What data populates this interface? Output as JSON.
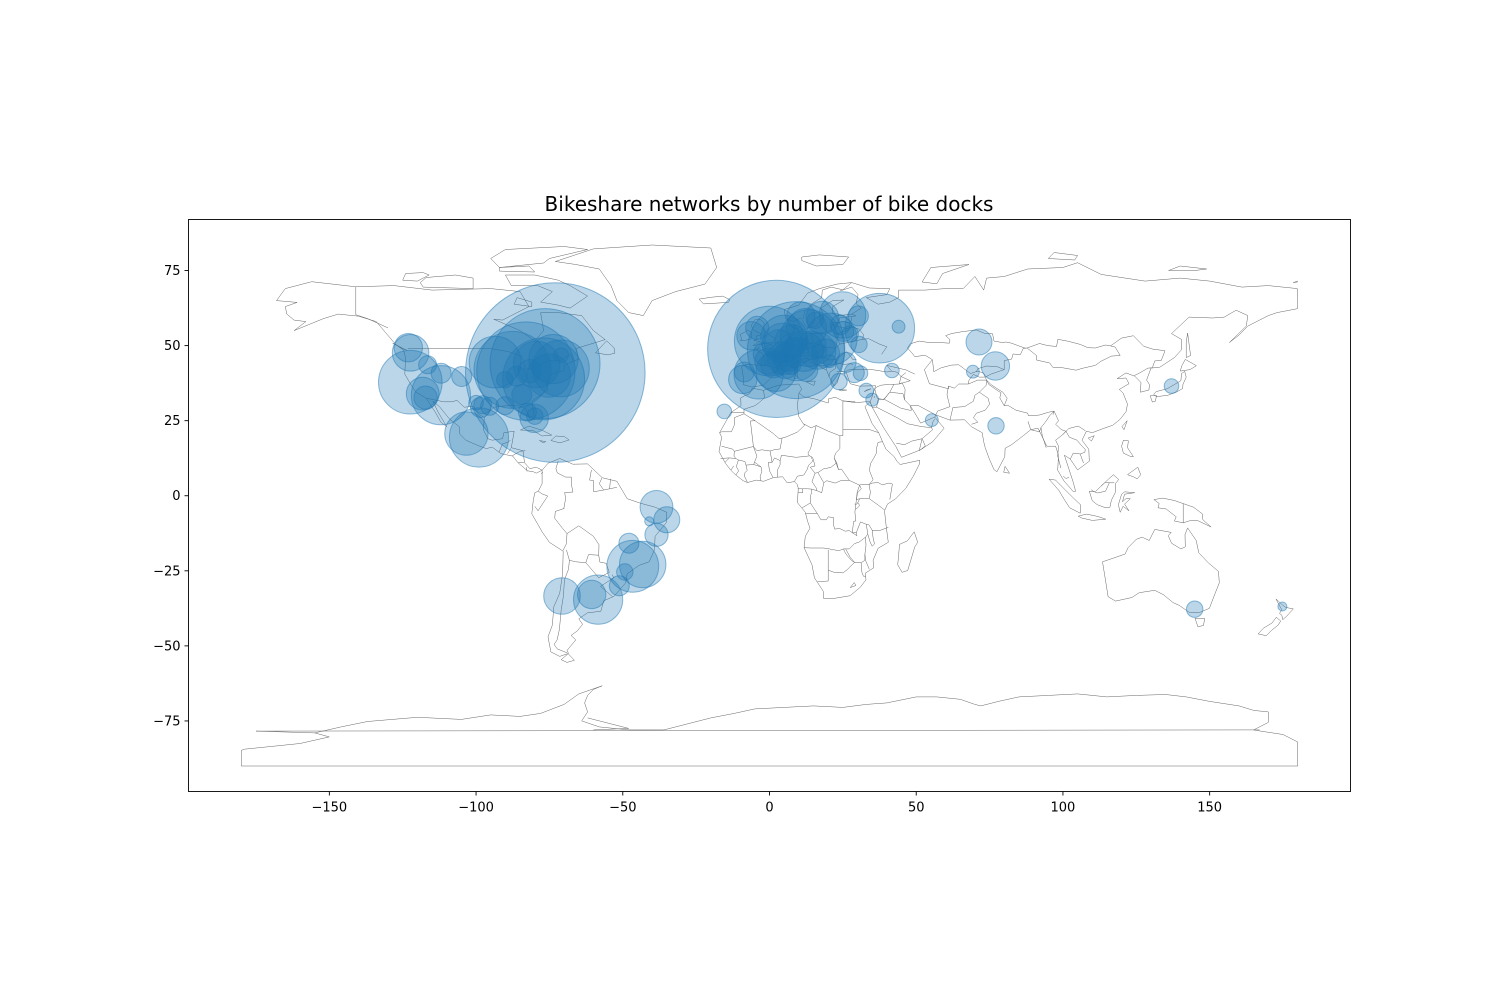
{
  "chart_data": {
    "type": "scatter",
    "title": "Bikeshare networks by number of bike docks",
    "xlabel": "",
    "ylabel": "",
    "xlim": [
      -198,
      198
    ],
    "ylim": [
      -98.5,
      92
    ],
    "x_ticks": [
      -150,
      -100,
      -50,
      0,
      50,
      100,
      150
    ],
    "y_ticks": [
      -75,
      -50,
      -25,
      0,
      25,
      50,
      75
    ],
    "x_tick_labels": [
      "−150",
      "−100",
      "−50",
      "0",
      "50",
      "100",
      "150"
    ],
    "y_tick_labels": [
      "−75",
      "−50",
      "−25",
      "0",
      "25",
      "50",
      "75"
    ],
    "grid": false,
    "legend": "none",
    "basemap": "world country outlines",
    "colors": {
      "points": "#1f77b4",
      "land_outline": "#666666"
    },
    "size_encoding": "number of bike docks",
    "points": [
      {
        "lon": -73.0,
        "lat": 41.0,
        "docks": 12000
      },
      {
        "lon": -76.5,
        "lat": 44.0,
        "docks": 4500
      },
      {
        "lon": -83.0,
        "lat": 41.5,
        "docks": 3600
      },
      {
        "lon": -77.0,
        "lat": 38.9,
        "docks": 2500
      },
      {
        "lon": -87.6,
        "lat": 41.9,
        "docks": 2200
      },
      {
        "lon": -93.5,
        "lat": 44.5,
        "docks": 1000
      },
      {
        "lon": -122.4,
        "lat": 37.8,
        "docks": 1500
      },
      {
        "lon": -112.0,
        "lat": 33.5,
        "docks": 1300
      },
      {
        "lon": -99.0,
        "lat": 19.4,
        "docks": 1300
      },
      {
        "lon": -118.2,
        "lat": 34.0,
        "docks": 400
      },
      {
        "lon": -122.3,
        "lat": 47.6,
        "docks": 500
      },
      {
        "lon": -123.1,
        "lat": 49.3,
        "docks": 300
      },
      {
        "lon": -80.2,
        "lat": 25.8,
        "docks": 300
      },
      {
        "lon": -104.9,
        "lat": 39.7,
        "docks": 150
      },
      {
        "lon": -98.5,
        "lat": 29.4,
        "docks": 150
      },
      {
        "lon": -97.7,
        "lat": 30.3,
        "docks": 120
      },
      {
        "lon": -95.4,
        "lat": 29.8,
        "docks": 120
      },
      {
        "lon": -90.1,
        "lat": 30.0,
        "docks": 120
      },
      {
        "lon": -84.4,
        "lat": 33.7,
        "docks": 150
      },
      {
        "lon": -81.7,
        "lat": 41.5,
        "docks": 200
      },
      {
        "lon": -79.4,
        "lat": 43.7,
        "docks": 800
      },
      {
        "lon": -73.6,
        "lat": 45.5,
        "docks": 900
      },
      {
        "lon": -71.1,
        "lat": 42.4,
        "docks": 1200
      },
      {
        "lon": -75.2,
        "lat": 40.0,
        "docks": 700
      },
      {
        "lon": -86.2,
        "lat": 39.8,
        "docks": 150
      },
      {
        "lon": -90.2,
        "lat": 38.6,
        "docks": 100
      },
      {
        "lon": -111.9,
        "lat": 40.8,
        "docks": 150
      },
      {
        "lon": -117.2,
        "lat": 32.7,
        "docks": 200
      },
      {
        "lon": -116.5,
        "lat": 43.6,
        "docks": 120
      },
      {
        "lon": -100.0,
        "lat": 31.0,
        "docks": 80
      },
      {
        "lon": -103.3,
        "lat": 20.7,
        "docks": 700
      },
      {
        "lon": -80.0,
        "lat": 26.5,
        "docks": 100
      },
      {
        "lon": -82.5,
        "lat": 27.9,
        "docks": 120
      },
      {
        "lon": -71.0,
        "lat": 46.8,
        "docks": 80
      },
      {
        "lon": 2.3,
        "lat": 48.9,
        "docks": 7000
      },
      {
        "lon": 9.0,
        "lat": 48.5,
        "docks": 3500
      },
      {
        "lon": -3.7,
        "lat": 40.4,
        "docks": 900
      },
      {
        "lon": -0.1,
        "lat": 51.5,
        "docks": 1800
      },
      {
        "lon": 37.6,
        "lat": 55.8,
        "docks": 1800
      },
      {
        "lon": 24.9,
        "lat": 60.2,
        "docks": 800
      },
      {
        "lon": 18.0,
        "lat": 59.3,
        "docks": 400
      },
      {
        "lon": 10.7,
        "lat": 59.9,
        "docks": 300
      },
      {
        "lon": 12.6,
        "lat": 55.7,
        "docks": 600
      },
      {
        "lon": 13.4,
        "lat": 52.5,
        "docks": 1200
      },
      {
        "lon": 21.0,
        "lat": 52.2,
        "docks": 1000
      },
      {
        "lon": 16.4,
        "lat": 48.2,
        "docks": 500
      },
      {
        "lon": 11.6,
        "lat": 48.1,
        "docks": 600
      },
      {
        "lon": 9.2,
        "lat": 45.5,
        "docks": 700
      },
      {
        "lon": 12.5,
        "lat": 41.9,
        "docks": 200
      },
      {
        "lon": 4.9,
        "lat": 52.4,
        "docks": 800
      },
      {
        "lon": 4.4,
        "lat": 50.8,
        "docks": 600
      },
      {
        "lon": 6.0,
        "lat": 46.2,
        "docks": 300
      },
      {
        "lon": 2.2,
        "lat": 41.4,
        "docks": 600
      },
      {
        "lon": -9.1,
        "lat": 38.7,
        "docks": 300
      },
      {
        "lon": -6.3,
        "lat": 53.3,
        "docks": 300
      },
      {
        "lon": -4.2,
        "lat": 55.9,
        "docks": 200
      },
      {
        "lon": 14.4,
        "lat": 50.1,
        "docks": 300
      },
      {
        "lon": 19.0,
        "lat": 47.5,
        "docks": 300
      },
      {
        "lon": 26.1,
        "lat": 44.4,
        "docks": 150
      },
      {
        "lon": 23.7,
        "lat": 38.0,
        "docks": 100
      },
      {
        "lon": 28.9,
        "lat": 41.0,
        "docks": 150
      },
      {
        "lon": 31.0,
        "lat": 40.8,
        "docks": 80
      },
      {
        "lon": 24.1,
        "lat": 56.9,
        "docks": 150
      },
      {
        "lon": 25.3,
        "lat": 54.7,
        "docks": 150
      },
      {
        "lon": 30.3,
        "lat": 59.9,
        "docks": 150
      },
      {
        "lon": 44.0,
        "lat": 56.3,
        "docks": 60
      },
      {
        "lon": 27.5,
        "lat": 53.9,
        "docks": 100
      },
      {
        "lon": 30.5,
        "lat": 50.4,
        "docks": 100
      },
      {
        "lon": 33.0,
        "lat": 35.0,
        "docks": 80
      },
      {
        "lon": 35.0,
        "lat": 32.0,
        "docks": 60
      },
      {
        "lon": 41.7,
        "lat": 41.7,
        "docks": 80
      },
      {
        "lon": 8.5,
        "lat": 47.4,
        "docks": 300
      },
      {
        "lon": 7.5,
        "lat": 51.5,
        "docks": 400
      },
      {
        "lon": 3.1,
        "lat": 50.6,
        "docks": 300
      },
      {
        "lon": 5.4,
        "lat": 43.3,
        "docks": 250
      },
      {
        "lon": 1.4,
        "lat": 43.6,
        "docks": 250
      },
      {
        "lon": -0.6,
        "lat": 44.8,
        "docks": 250
      },
      {
        "lon": -1.6,
        "lat": 47.2,
        "docks": 200
      },
      {
        "lon": 4.8,
        "lat": 45.8,
        "docks": 400
      },
      {
        "lon": 7.3,
        "lat": 43.7,
        "docks": 150
      },
      {
        "lon": -8.6,
        "lat": 41.2,
        "docks": 150
      },
      {
        "lon": 15.6,
        "lat": 58.4,
        "docks": 100
      },
      {
        "lon": 17.1,
        "lat": 48.1,
        "docks": 80
      },
      {
        "lon": 20.5,
        "lat": 44.8,
        "docks": 60
      },
      {
        "lon": -15.4,
        "lat": 28.1,
        "docks": 80
      },
      {
        "lon": 55.3,
        "lat": 25.2,
        "docks": 60
      },
      {
        "lon": 71.4,
        "lat": 51.2,
        "docks": 250
      },
      {
        "lon": 77.0,
        "lat": 43.2,
        "docks": 300
      },
      {
        "lon": 69.3,
        "lat": 41.3,
        "docks": 60
      },
      {
        "lon": 77.2,
        "lat": 23.3,
        "docks": 100
      },
      {
        "lon": 137.0,
        "lat": 36.5,
        "docks": 80
      },
      {
        "lon": 144.9,
        "lat": -37.8,
        "docks": 100
      },
      {
        "lon": 174.8,
        "lat": -36.9,
        "docks": 30
      },
      {
        "lon": -38.5,
        "lat": -3.7,
        "docks": 400
      },
      {
        "lon": -35.0,
        "lat": -8.0,
        "docks": 250
      },
      {
        "lon": -38.5,
        "lat": -13.0,
        "docks": 200
      },
      {
        "lon": -43.2,
        "lat": -22.9,
        "docks": 800
      },
      {
        "lon": -46.6,
        "lat": -23.5,
        "docks": 1000
      },
      {
        "lon": -47.9,
        "lat": -15.8,
        "docks": 150
      },
      {
        "lon": -49.3,
        "lat": -25.4,
        "docks": 100
      },
      {
        "lon": -51.2,
        "lat": -30.0,
        "docks": 150
      },
      {
        "lon": -58.4,
        "lat": -34.6,
        "docks": 900
      },
      {
        "lon": -60.6,
        "lat": -32.9,
        "docks": 300
      },
      {
        "lon": -70.7,
        "lat": -33.4,
        "docks": 500
      },
      {
        "lon": -41.0,
        "lat": -8.5,
        "docks": 30
      }
    ]
  }
}
